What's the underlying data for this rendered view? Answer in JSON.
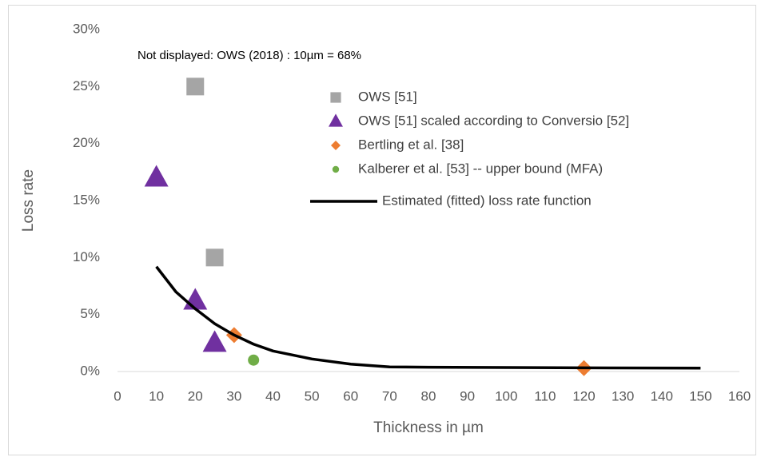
{
  "chart_data": {
    "type": "scatter",
    "annotation": "Not displayed: OWS (2018) : 10µm  = 68%",
    "x_label": "Thickness in µm",
    "y_label": "Loss rate",
    "xlim": [
      0,
      160
    ],
    "xticks": [
      0,
      10,
      20,
      30,
      40,
      50,
      60,
      70,
      80,
      90,
      100,
      110,
      120,
      130,
      140,
      150,
      160
    ],
    "ylim": [
      0,
      30
    ],
    "yticks": [
      {
        "value": 0,
        "label": "0%"
      },
      {
        "value": 5,
        "label": "5%"
      },
      {
        "value": 10,
        "label": "10%"
      },
      {
        "value": 15,
        "label": "15%"
      },
      {
        "value": 20,
        "label": "20%"
      },
      {
        "value": 25,
        "label": "25%"
      },
      {
        "value": 30,
        "label": "30%"
      }
    ],
    "grid": false,
    "series": [
      {
        "name": "OWS [51]",
        "color": "#a5a5a5",
        "marker": "square",
        "x": [
          20,
          25
        ],
        "values": [
          25,
          10
        ]
      },
      {
        "name": "OWS [51] scaled according to Conversio [52]",
        "color": "#7030a0",
        "marker": "triangle",
        "x": [
          10,
          20,
          25
        ],
        "values": [
          17,
          6.2,
          2.5
        ]
      },
      {
        "name": "Bertling et al. [38]",
        "color": "#ed7d31",
        "marker": "diamond",
        "x": [
          30,
          120
        ],
        "values": [
          3.2,
          0.3
        ]
      },
      {
        "name": "Kalberer et al. [53] -- upper bound  (MFA)",
        "color": "#70ad47",
        "marker": "circle",
        "x": [
          35
        ],
        "values": [
          1.0
        ]
      },
      {
        "name": "Estimated (fitted) loss rate function",
        "color": "#000000",
        "marker": "line",
        "x": [
          10,
          15,
          20,
          25,
          30,
          35,
          40,
          50,
          60,
          70,
          80,
          100,
          120,
          150
        ],
        "values": [
          9.2,
          7.0,
          5.5,
          4.2,
          3.2,
          2.4,
          1.8,
          1.1,
          0.65,
          0.4,
          0.38,
          0.35,
          0.32,
          0.3
        ]
      }
    ]
  }
}
